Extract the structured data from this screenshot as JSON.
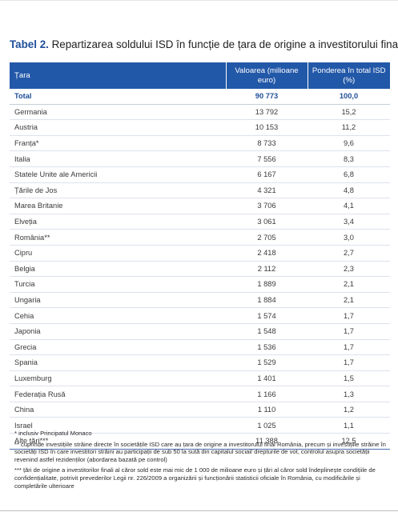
{
  "title": {
    "label": "Tabel 2.",
    "text": " Repartizarea soldului ISD în funcție de țara de origine a investitorului final"
  },
  "table": {
    "headers": {
      "country": "Țara",
      "value": "Valoarea (milioane euro)",
      "share": "Ponderea în total ISD (%)"
    },
    "total": {
      "country": "Total",
      "value": "90 773",
      "share": "100,0"
    },
    "rows": [
      {
        "country": "Germania",
        "value": "13 792",
        "share": "15,2"
      },
      {
        "country": "Austria",
        "value": "10 153",
        "share": "11,2"
      },
      {
        "country": "Franța*",
        "value": "8 733",
        "share": "9,6"
      },
      {
        "country": "Italia",
        "value": "7 556",
        "share": "8,3"
      },
      {
        "country": "Statele Unite ale Americii",
        "value": "6 167",
        "share": "6,8"
      },
      {
        "country": "Țările de Jos",
        "value": "4 321",
        "share": "4,8"
      },
      {
        "country": "Marea Britanie",
        "value": "3 706",
        "share": "4,1"
      },
      {
        "country": "Elveția",
        "value": "3 061",
        "share": "3,4"
      },
      {
        "country": "România**",
        "value": "2 705",
        "share": "3,0"
      },
      {
        "country": "Cipru",
        "value": "2 418",
        "share": "2,7"
      },
      {
        "country": "Belgia",
        "value": "2 112",
        "share": "2,3"
      },
      {
        "country": "Turcia",
        "value": "1 889",
        "share": "2,1"
      },
      {
        "country": "Ungaria",
        "value": "1 884",
        "share": "2,1"
      },
      {
        "country": "Cehia",
        "value": "1 574",
        "share": "1,7"
      },
      {
        "country": "Japonia",
        "value": "1 548",
        "share": "1,7"
      },
      {
        "country": "Grecia",
        "value": "1 536",
        "share": "1,7"
      },
      {
        "country": "Spania",
        "value": "1 529",
        "share": "1,7"
      },
      {
        "country": "Luxemburg",
        "value": "1 401",
        "share": "1,5"
      },
      {
        "country": "Federația Rusă",
        "value": "1 166",
        "share": "1,3"
      },
      {
        "country": "China",
        "value": "1 110",
        "share": "1,2"
      },
      {
        "country": "Israel",
        "value": "1 025",
        "share": "1,1"
      },
      {
        "country": "Alte țări***",
        "value": "11 388",
        "share": "12,5"
      }
    ]
  },
  "notes": [
    "* inclusiv Principatul Monaco",
    "** cuprinde investițiile străine directe în societățile ISD care au țara de origine a investitorului final România, precum și investițiile străine în societăți ISD în care investitori străini au participații de sub 50 la sută din capitalul social/ drepturile de vot, controlul asupra societății revenind astfel rezidenților (abordarea bazată pe control)",
    "*** țări de origine a investitorilor finali al căror sold este mai mic de 1 000 de milioane euro și țări al căror sold îndeplinește condițiile de confidențialitate, potrivit prevederilor Legii nr. 226/2009 a organizării și funcționării statisticii oficiale în România, cu modificările și completările ulterioare"
  ],
  "colors": {
    "header_bg": "#2258a8",
    "accent": "#1f4e9a"
  }
}
